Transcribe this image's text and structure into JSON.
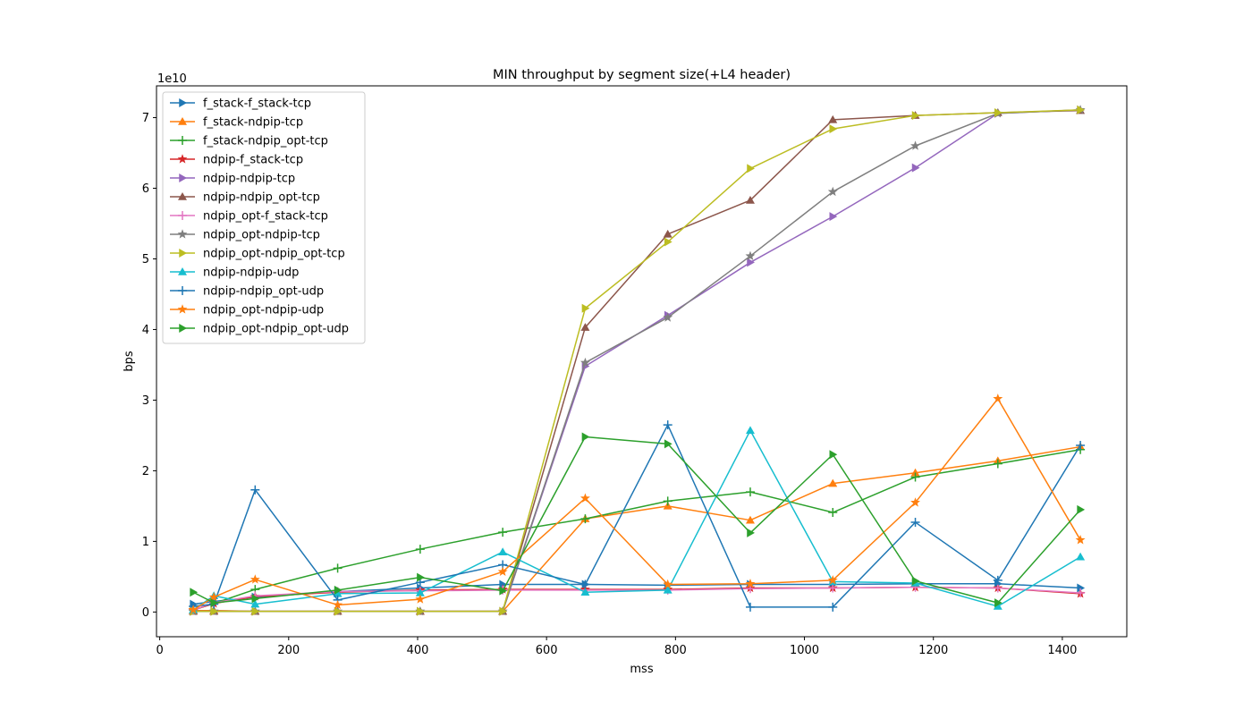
{
  "chart_data": {
    "type": "line",
    "title": "MIN throughput by segment size(+L4 header)",
    "xlabel": "mss",
    "ylabel": "bps",
    "offset_text": "1e10",
    "xlim": [
      -5,
      1500
    ],
    "ylim": [
      -3500000000.0,
      74500000000.0
    ],
    "xticks": [
      0,
      200,
      400,
      600,
      800,
      1000,
      1200,
      1400
    ],
    "yticks": [
      0,
      10000000000.0,
      20000000000.0,
      30000000000.0,
      40000000000.0,
      50000000000.0,
      60000000000.0,
      70000000000.0
    ],
    "ytick_labels": [
      "0",
      "1",
      "2",
      "3",
      "4",
      "5",
      "6",
      "7"
    ],
    "legend_position": "upper left",
    "grid": false,
    "x": [
      52,
      84,
      148,
      276,
      404,
      532,
      660,
      788,
      916,
      1044,
      1172,
      1300,
      1428
    ],
    "series": [
      {
        "name": "f_stack-f_stack-tcp",
        "color": "#1f77b4",
        "marker": "triangle-right",
        "values": [
          1100000000.0,
          1500000000.0,
          2100000000.0,
          2900000000.0,
          3400000000.0,
          3900000000.0,
          3900000000.0,
          3800000000.0,
          3900000000.0,
          3900000000.0,
          4000000000.0,
          4000000000.0,
          3400000000.0
        ]
      },
      {
        "name": "f_stack-ndpip-tcp",
        "color": "#ff7f0e",
        "marker": "triangle-up",
        "values": [
          200000000.0,
          200000000.0,
          100000000.0,
          100000000.0,
          100000000.0,
          100000000.0,
          13200000000.0,
          15000000000.0,
          13000000000.0,
          18200000000.0,
          19700000000.0,
          21400000000.0,
          23400000000.0
        ]
      },
      {
        "name": "f_stack-ndpip_opt-tcp",
        "color": "#2ca02c",
        "marker": "plus",
        "values": [
          300000000.0,
          1200000000.0,
          3200000000.0,
          6200000000.0,
          8900000000.0,
          11300000000.0,
          13200000000.0,
          15700000000.0,
          17000000000.0,
          14100000000.0,
          19100000000.0,
          21000000000.0,
          23000000000.0
        ]
      },
      {
        "name": "ndpip-f_stack-tcp",
        "color": "#d62728",
        "marker": "star",
        "values": [
          300000000.0,
          1200000000.0,
          2200000000.0,
          2800000000.0,
          3100000000.0,
          3200000000.0,
          3200000000.0,
          3200000000.0,
          3400000000.0,
          3400000000.0,
          3500000000.0,
          3400000000.0,
          2600000000.0
        ]
      },
      {
        "name": "ndpip-ndpip-tcp",
        "color": "#9467bd",
        "marker": "triangle-right",
        "values": [
          100000000.0,
          100000000.0,
          100000000.0,
          100000000.0,
          100000000.0,
          100000000.0,
          34800000000.0,
          42000000000.0,
          49500000000.0,
          56000000000.0,
          62900000000.0,
          70600000000.0,
          71100000000.0
        ]
      },
      {
        "name": "ndpip-ndpip_opt-tcp",
        "color": "#8c564b",
        "marker": "triangle-up",
        "values": [
          100000000.0,
          100000000.0,
          100000000.0,
          100000000.0,
          100000000.0,
          100000000.0,
          40300000000.0,
          53500000000.0,
          58300000000.0,
          69700000000.0,
          70300000000.0,
          70700000000.0,
          71000000000.0
        ]
      },
      {
        "name": "ndpip_opt-f_stack-tcp",
        "color": "#e377c2",
        "marker": "plus",
        "values": [
          300000000.0,
          1300000000.0,
          2300000000.0,
          2900000000.0,
          3000000000.0,
          3100000000.0,
          3100000000.0,
          3100000000.0,
          3300000000.0,
          3400000000.0,
          3500000000.0,
          3400000000.0,
          2700000000.0
        ]
      },
      {
        "name": "ndpip_opt-ndpip-tcp",
        "color": "#7f7f7f",
        "marker": "star",
        "values": [
          100000000.0,
          100000000.0,
          100000000.0,
          100000000.0,
          100000000.0,
          100000000.0,
          35300000000.0,
          41700000000.0,
          50400000000.0,
          59500000000.0,
          66000000000.0,
          70600000000.0,
          71100000000.0
        ]
      },
      {
        "name": "ndpip_opt-ndpip_opt-tcp",
        "color": "#bcbd22",
        "marker": "triangle-right",
        "values": [
          100000000.0,
          100000000.0,
          100000000.0,
          100000000.0,
          100000000.0,
          100000000.0,
          43000000000.0,
          52400000000.0,
          62800000000.0,
          68400000000.0,
          70300000000.0,
          70700000000.0,
          71100000000.0
        ]
      },
      {
        "name": "ndpip-ndpip-udp",
        "color": "#17becf",
        "marker": "triangle-up",
        "values": [
          300000000.0,
          2300000000.0,
          1100000000.0,
          2600000000.0,
          2700000000.0,
          8500000000.0,
          2800000000.0,
          3100000000.0,
          25700000000.0,
          4300000000.0,
          4100000000.0,
          800000000.0,
          7800000000.0
        ]
      },
      {
        "name": "ndpip-ndpip_opt-udp",
        "color": "#1f77b4",
        "marker": "plus",
        "values": [
          800000000.0,
          1100000000.0,
          17300000000.0,
          1700000000.0,
          4200000000.0,
          6700000000.0,
          3900000000.0,
          26500000000.0,
          700000000.0,
          700000000.0,
          12700000000.0,
          4500000000.0,
          23600000000.0
        ]
      },
      {
        "name": "ndpip_opt-ndpip-udp",
        "color": "#ff7f0e",
        "marker": "star",
        "values": [
          300000000.0,
          2100000000.0,
          4600000000.0,
          1000000000.0,
          1800000000.0,
          5700000000.0,
          16100000000.0,
          3900000000.0,
          4000000000.0,
          4500000000.0,
          15500000000.0,
          30200000000.0,
          10200000000.0
        ]
      },
      {
        "name": "ndpip_opt-ndpip_opt-udp",
        "color": "#2ca02c",
        "marker": "triangle-right",
        "values": [
          2800000000.0,
          1300000000.0,
          1900000000.0,
          3100000000.0,
          4900000000.0,
          3000000000.0,
          24800000000.0,
          23800000000.0,
          11200000000.0,
          22300000000.0,
          4400000000.0,
          1300000000.0,
          14500000000.0
        ]
      }
    ]
  }
}
